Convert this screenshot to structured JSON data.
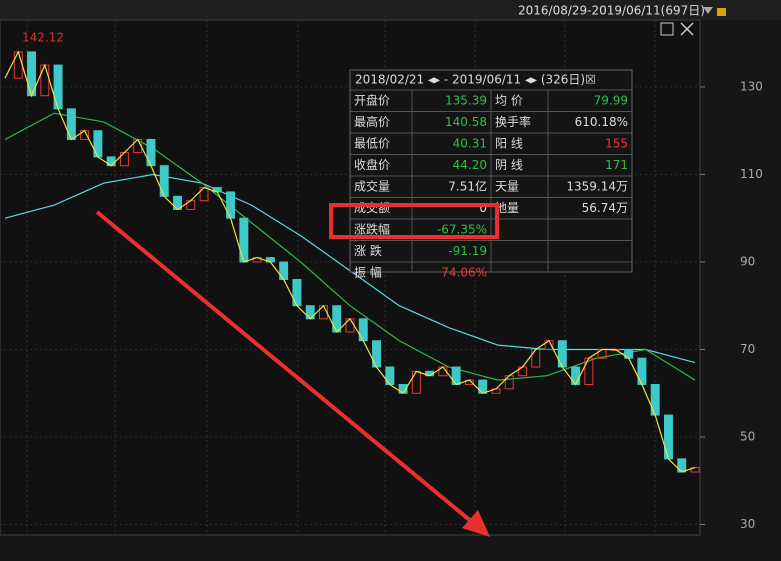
{
  "header": {
    "range": "2016/08/29-2019/06/11(697日)"
  },
  "chart": {
    "ylim": [
      27.6,
      145.3
    ],
    "yticks": [
      30,
      50,
      70,
      90,
      110,
      130
    ],
    "max_label": "142.12",
    "closes": [
      132,
      138,
      128,
      135,
      125,
      118,
      120,
      114,
      112,
      115,
      118,
      112,
      105,
      102,
      104,
      107,
      106,
      100,
      90,
      91,
      90,
      86,
      80,
      77,
      80,
      74,
      77,
      72,
      66,
      62,
      60,
      65,
      64,
      66,
      62,
      63,
      60,
      61,
      64,
      66,
      70,
      72,
      66,
      62,
      68,
      70,
      70,
      68,
      62,
      55,
      45,
      42,
      43
    ],
    "ma_long": [
      100,
      103,
      108,
      110,
      108,
      103,
      96,
      88,
      80,
      75,
      71,
      70,
      70,
      70,
      67
    ],
    "ma_mid": [
      118,
      124,
      122,
      116,
      108,
      99,
      90,
      80,
      72,
      66,
      63,
      64,
      68,
      70,
      63
    ]
  },
  "stats": {
    "title": "2018/02/21 ◂▸ - 2019/06/11 ◂▸ (326日)☒",
    "rows": [
      [
        "开盘价",
        "135.39",
        "均  价",
        "79.99"
      ],
      [
        "最高价",
        "140.58",
        "换手率",
        "610.18%"
      ],
      [
        "最低价",
        "40.31",
        "阳  线",
        "155"
      ],
      [
        "收盘价",
        "44.20",
        "阴  线",
        "171"
      ],
      [
        "成交量",
        "7.51亿",
        "天量",
        "1359.14万"
      ],
      [
        "成交额",
        "0",
        "地量",
        "56.74万"
      ],
      [
        "涨跌幅",
        "-67.35%"
      ],
      [
        "涨  跌",
        "-91.19"
      ],
      [
        "振  幅",
        "74.06%"
      ]
    ]
  }
}
